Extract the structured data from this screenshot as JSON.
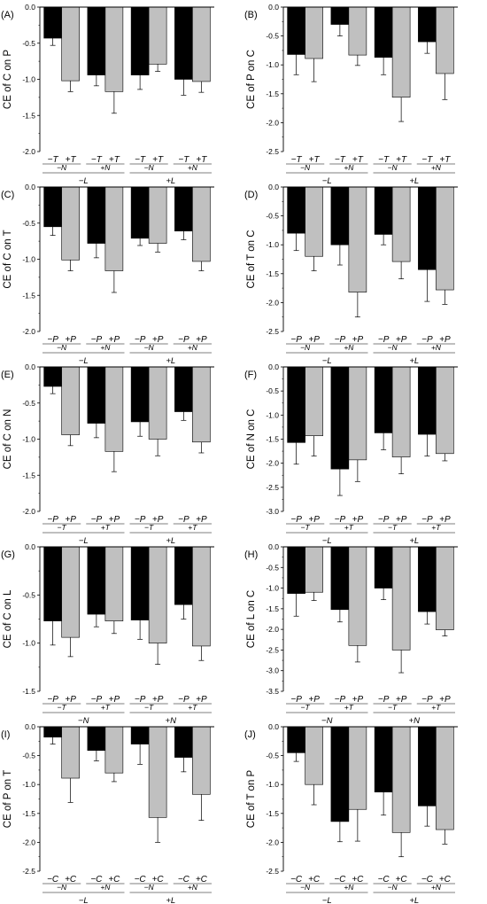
{
  "colors": {
    "black_bar": "#000000",
    "gray_bar": "#c0c0c0",
    "axis": "#000000"
  },
  "chart_data": [
    {
      "panel": "(A)",
      "type": "bar",
      "ylabel": "CE of C on P",
      "ylim": [
        -2.0,
        0.0
      ],
      "yticks": [
        "0.0",
        "-0.5",
        "-1.0",
        "-1.5",
        "-2.0"
      ],
      "ytick_values": [
        0.0,
        -0.5,
        -1.0,
        -1.5,
        -2.0
      ],
      "groups": [
        {
          "bars": [
            {
              "label": "−T",
              "value": -0.43,
              "error": 0.1
            },
            {
              "label": "+T",
              "value": -1.02,
              "error": 0.15
            }
          ],
          "level2": "−N"
        },
        {
          "bars": [
            {
              "label": "−T",
              "value": -0.94,
              "error": 0.15
            },
            {
              "label": "+T",
              "value": -1.17,
              "error": 0.3
            }
          ],
          "level2": "+N"
        },
        {
          "bars": [
            {
              "label": "−T",
              "value": -0.94,
              "error": 0.2
            },
            {
              "label": "+T",
              "value": -0.79,
              "error": 0.1
            }
          ],
          "level2": "−N"
        },
        {
          "bars": [
            {
              "label": "−T",
              "value": -1.0,
              "error": 0.22
            },
            {
              "label": "+T",
              "value": -1.03,
              "error": 0.15
            }
          ],
          "level2": "+N"
        }
      ],
      "level3": [
        "−L",
        "+L"
      ]
    },
    {
      "panel": "(B)",
      "type": "bar",
      "ylabel": "CE of P on C",
      "ylim": [
        -2.5,
        0.0
      ],
      "yticks": [
        "0.0",
        "-0.5",
        "-1.0",
        "-1.5",
        "-2.0",
        "-2.5"
      ],
      "ytick_values": [
        0.0,
        -0.5,
        -1.0,
        -1.5,
        -2.0,
        -2.5
      ],
      "groups": [
        {
          "bars": [
            {
              "label": "−T",
              "value": -0.82,
              "error": 0.35
            },
            {
              "label": "+T",
              "value": -0.89,
              "error": 0.4
            }
          ],
          "level2": "−N"
        },
        {
          "bars": [
            {
              "label": "−T",
              "value": -0.3,
              "error": 0.2
            },
            {
              "label": "+T",
              "value": -0.83,
              "error": 0.18
            }
          ],
          "level2": "+N"
        },
        {
          "bars": [
            {
              "label": "−T",
              "value": -0.87,
              "error": 0.3
            },
            {
              "label": "+T",
              "value": -1.56,
              "error": 0.42
            }
          ],
          "level2": "−N"
        },
        {
          "bars": [
            {
              "label": "−T",
              "value": -0.6,
              "error": 0.2
            },
            {
              "label": "+T",
              "value": -1.15,
              "error": 0.45
            }
          ],
          "level2": "+N"
        }
      ],
      "level3": [
        "−L",
        "+L"
      ]
    },
    {
      "panel": "(C)",
      "type": "bar",
      "ylabel": "CE of C on T",
      "ylim": [
        -2.0,
        0.0
      ],
      "yticks": [
        "0.0",
        "-0.5",
        "-1.0",
        "-1.5",
        "-2.0"
      ],
      "ytick_values": [
        0.0,
        -0.5,
        -1.0,
        -1.5,
        -2.0
      ],
      "groups": [
        {
          "bars": [
            {
              "label": "−P",
              "value": -0.55,
              "error": 0.12
            },
            {
              "label": "+P",
              "value": -1.01,
              "error": 0.15
            }
          ],
          "level2": "−N"
        },
        {
          "bars": [
            {
              "label": "−P",
              "value": -0.78,
              "error": 0.2
            },
            {
              "label": "+P",
              "value": -1.16,
              "error": 0.3
            }
          ],
          "level2": "+N"
        },
        {
          "bars": [
            {
              "label": "−P",
              "value": -0.71,
              "error": 0.1
            },
            {
              "label": "+P",
              "value": -0.78,
              "error": 0.12
            }
          ],
          "level2": "−N"
        },
        {
          "bars": [
            {
              "label": "−P",
              "value": -0.61,
              "error": 0.12
            },
            {
              "label": "+P",
              "value": -1.03,
              "error": 0.13
            }
          ],
          "level2": "+N"
        }
      ],
      "level3": [
        "−L",
        "+L"
      ]
    },
    {
      "panel": "(D)",
      "type": "bar",
      "ylabel": "CE of T on C",
      "ylim": [
        -2.5,
        0.0
      ],
      "yticks": [
        "0.0",
        "-0.5",
        "-1.0",
        "-1.5",
        "-2.0",
        "-2.5"
      ],
      "ytick_values": [
        0.0,
        -0.5,
        -1.0,
        -1.5,
        -2.0,
        -2.5
      ],
      "groups": [
        {
          "bars": [
            {
              "label": "−P",
              "value": -0.8,
              "error": 0.3
            },
            {
              "label": "+P",
              "value": -1.2,
              "error": 0.25
            }
          ],
          "level2": "−N"
        },
        {
          "bars": [
            {
              "label": "−P",
              "value": -1.0,
              "error": 0.35
            },
            {
              "label": "+P",
              "value": -1.82,
              "error": 0.43
            }
          ],
          "level2": "+N"
        },
        {
          "bars": [
            {
              "label": "−P",
              "value": -0.82,
              "error": 0.18
            },
            {
              "label": "+P",
              "value": -1.29,
              "error": 0.3
            }
          ],
          "level2": "−N"
        },
        {
          "bars": [
            {
              "label": "−P",
              "value": -1.43,
              "error": 0.55
            },
            {
              "label": "+P",
              "value": -1.78,
              "error": 0.25
            }
          ],
          "level2": "+N"
        }
      ],
      "level3": [
        "−L",
        "+L"
      ]
    },
    {
      "panel": "(E)",
      "type": "bar",
      "ylabel": "CE of C on N",
      "ylim": [
        -2.0,
        0.0
      ],
      "yticks": [
        "0.0",
        "-0.5",
        "-1.0",
        "-1.5",
        "-2.0"
      ],
      "ytick_values": [
        0.0,
        -0.5,
        -1.0,
        -1.5,
        -2.0
      ],
      "groups": [
        {
          "bars": [
            {
              "label": "−P",
              "value": -0.27,
              "error": 0.1
            },
            {
              "label": "+P",
              "value": -0.94,
              "error": 0.15
            }
          ],
          "level2": "−T"
        },
        {
          "bars": [
            {
              "label": "−P",
              "value": -0.78,
              "error": 0.2
            },
            {
              "label": "+P",
              "value": -1.17,
              "error": 0.28
            }
          ],
          "level2": "+T"
        },
        {
          "bars": [
            {
              "label": "−P",
              "value": -0.76,
              "error": 0.2
            },
            {
              "label": "+P",
              "value": -1.0,
              "error": 0.23
            }
          ],
          "level2": "−T"
        },
        {
          "bars": [
            {
              "label": "−P",
              "value": -0.62,
              "error": 0.12
            },
            {
              "label": "+P",
              "value": -1.04,
              "error": 0.15
            }
          ],
          "level2": "+T"
        }
      ],
      "level3": [
        "−L",
        "+L"
      ]
    },
    {
      "panel": "(F)",
      "type": "bar",
      "ylabel": "CE of N on C",
      "ylim": [
        -3.0,
        0.0
      ],
      "yticks": [
        "0.0",
        "-0.5",
        "-1.0",
        "-1.5",
        "-2.0",
        "-2.5",
        "-3.0"
      ],
      "ytick_values": [
        0.0,
        -0.5,
        -1.0,
        -1.5,
        -2.0,
        -2.5,
        -3.0
      ],
      "groups": [
        {
          "bars": [
            {
              "label": "−P",
              "value": -1.57,
              "error": 0.45
            },
            {
              "label": "+P",
              "value": -1.43,
              "error": 0.42
            }
          ],
          "level2": "−T"
        },
        {
          "bars": [
            {
              "label": "−P",
              "value": -2.12,
              "error": 0.55
            },
            {
              "label": "+P",
              "value": -1.93,
              "error": 0.45
            }
          ],
          "level2": "+T"
        },
        {
          "bars": [
            {
              "label": "−P",
              "value": -1.37,
              "error": 0.35
            },
            {
              "label": "+P",
              "value": -1.87,
              "error": 0.35
            }
          ],
          "level2": "−T"
        },
        {
          "bars": [
            {
              "label": "−P",
              "value": -1.4,
              "error": 0.45
            },
            {
              "label": "+P",
              "value": -1.8,
              "error": 0.15
            }
          ],
          "level2": "+T"
        }
      ],
      "level3": [
        "−L",
        "+L"
      ]
    },
    {
      "panel": "(G)",
      "type": "bar",
      "ylabel": "CE of C on L",
      "ylim": [
        -1.5,
        0.0
      ],
      "yticks": [
        "0.0",
        "-0.5",
        "-1.0",
        "-1.5"
      ],
      "ytick_values": [
        0.0,
        -0.5,
        -1.0,
        -1.5
      ],
      "groups": [
        {
          "bars": [
            {
              "label": "−P",
              "value": -0.77,
              "error": 0.25
            },
            {
              "label": "+P",
              "value": -0.94,
              "error": 0.2
            }
          ],
          "level2": "−T"
        },
        {
          "bars": [
            {
              "label": "−P",
              "value": -0.7,
              "error": 0.13
            },
            {
              "label": "+P",
              "value": -0.77,
              "error": 0.13
            }
          ],
          "level2": "+T"
        },
        {
          "bars": [
            {
              "label": "−P",
              "value": -0.76,
              "error": 0.2
            },
            {
              "label": "+P",
              "value": -1.0,
              "error": 0.22
            }
          ],
          "level2": "−T"
        },
        {
          "bars": [
            {
              "label": "−P",
              "value": -0.6,
              "error": 0.15
            },
            {
              "label": "+P",
              "value": -1.03,
              "error": 0.15
            }
          ],
          "level2": "+T"
        }
      ],
      "level3": [
        "−N",
        "+N"
      ]
    },
    {
      "panel": "(H)",
      "type": "bar",
      "ylabel": "CE of L on C",
      "ylim": [
        -3.5,
        0.0
      ],
      "yticks": [
        "0.0",
        "-0.5",
        "-1.0",
        "-1.5",
        "-2.0",
        "-2.5",
        "-3.0",
        "-3.5"
      ],
      "ytick_values": [
        0.0,
        -0.5,
        -1.0,
        -1.5,
        -2.0,
        -2.5,
        -3.0,
        -3.5
      ],
      "groups": [
        {
          "bars": [
            {
              "label": "−P",
              "value": -1.13,
              "error": 0.55
            },
            {
              "label": "+P",
              "value": -1.1,
              "error": 0.2
            }
          ],
          "level2": "−T"
        },
        {
          "bars": [
            {
              "label": "−P",
              "value": -1.52,
              "error": 0.3
            },
            {
              "label": "+P",
              "value": -2.39,
              "error": 0.4
            }
          ],
          "level2": "+T"
        },
        {
          "bars": [
            {
              "label": "−P",
              "value": -1.0,
              "error": 0.28
            },
            {
              "label": "+P",
              "value": -2.5,
              "error": 0.55
            }
          ],
          "level2": "−T"
        },
        {
          "bars": [
            {
              "label": "−P",
              "value": -1.57,
              "error": 0.3
            },
            {
              "label": "+P",
              "value": -2.01,
              "error": 0.15
            }
          ],
          "level2": "+T"
        }
      ],
      "level3": [
        "−N",
        "+N"
      ]
    },
    {
      "panel": "(I)",
      "type": "bar",
      "ylabel": "CE of P on T",
      "ylim": [
        -2.5,
        0.0
      ],
      "yticks": [
        "0.0",
        "-0.5",
        "-1.0",
        "-1.5",
        "-2.0",
        "-2.5"
      ],
      "ytick_values": [
        0.0,
        -0.5,
        -1.0,
        -1.5,
        -2.0,
        -2.5
      ],
      "groups": [
        {
          "bars": [
            {
              "label": "−C",
              "value": -0.18,
              "error": 0.12
            },
            {
              "label": "+C",
              "value": -0.89,
              "error": 0.42
            }
          ],
          "level2": "−N"
        },
        {
          "bars": [
            {
              "label": "−C",
              "value": -0.41,
              "error": 0.18
            },
            {
              "label": "+C",
              "value": -0.8,
              "error": 0.15
            }
          ],
          "level2": "+N"
        },
        {
          "bars": [
            {
              "label": "−C",
              "value": -0.3,
              "error": 0.35
            },
            {
              "label": "+C",
              "value": -1.57,
              "error": 0.43
            }
          ],
          "level2": "−N"
        },
        {
          "bars": [
            {
              "label": "−C",
              "value": -0.53,
              "error": 0.25
            },
            {
              "label": "+C",
              "value": -1.17,
              "error": 0.45
            }
          ],
          "level2": "+N"
        }
      ],
      "level3": [
        "−L",
        "+L"
      ]
    },
    {
      "panel": "(J)",
      "type": "bar",
      "ylabel": "CE of T on P",
      "ylim": [
        -2.5,
        0.0
      ],
      "yticks": [
        "0.0",
        "-0.5",
        "-1.0",
        "-1.5",
        "-2.0",
        "-2.5"
      ],
      "ytick_values": [
        0.0,
        -0.5,
        -1.0,
        -1.5,
        -2.0,
        -2.5
      ],
      "groups": [
        {
          "bars": [
            {
              "label": "−C",
              "value": -0.45,
              "error": 0.15
            },
            {
              "label": "+C",
              "value": -1.0,
              "error": 0.35
            }
          ],
          "level2": "−N"
        },
        {
          "bars": [
            {
              "label": "−C",
              "value": -1.64,
              "error": 0.35
            },
            {
              "label": "+C",
              "value": -1.43,
              "error": 0.55
            }
          ],
          "level2": "+N"
        },
        {
          "bars": [
            {
              "label": "−C",
              "value": -1.13,
              "error": 0.4
            },
            {
              "label": "+C",
              "value": -1.83,
              "error": 0.42
            }
          ],
          "level2": "−N"
        },
        {
          "bars": [
            {
              "label": "−C",
              "value": -1.37,
              "error": 0.35
            },
            {
              "label": "+C",
              "value": -1.78,
              "error": 0.25
            }
          ],
          "level2": "+N"
        }
      ],
      "level3": [
        "−L",
        "+L"
      ]
    }
  ]
}
